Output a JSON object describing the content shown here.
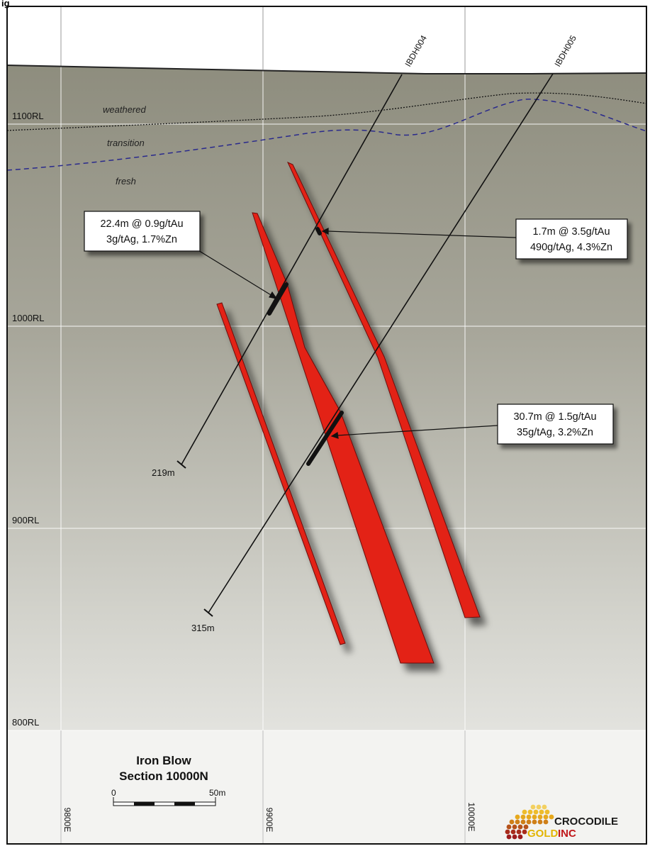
{
  "header_fragment": "ig",
  "rl_labels": [
    "1100RL",
    "1000RL",
    "900RL",
    "800RL"
  ],
  "easting_labels": [
    "9800E",
    "9900E",
    "10000E"
  ],
  "zones": {
    "weathered": "weathered",
    "transition": "transition",
    "fresh": "fresh"
  },
  "holes": [
    {
      "id": "IBDH004",
      "depth": "219m"
    },
    {
      "id": "IBDH005",
      "depth": "315m"
    }
  ],
  "intercepts": [
    {
      "line1": "22.4m @ 0.9g/tAu",
      "line2": "3g/tAg, 1.7%Zn"
    },
    {
      "line1": "1.7m @ 3.5g/tAu",
      "line2": "490g/tAg, 4.3%Zn"
    },
    {
      "line1": "30.7m @ 1.5g/tAu",
      "line2": "35g/tAg, 3.2%Zn"
    }
  ],
  "title": {
    "line1": "Iron Blow",
    "line2": "Section 10000N"
  },
  "scale": {
    "start": "0",
    "end": "50m"
  },
  "logo": {
    "line1": "CROCODILE",
    "line2a": "GOLD",
    "line2b": "INC"
  },
  "colors": {
    "orebody": "#e32219",
    "rock_top": "#908f80",
    "rock_bottom": "#f0f0ee",
    "hole_line": "#111111",
    "transition_line": "#2a2a8c"
  }
}
